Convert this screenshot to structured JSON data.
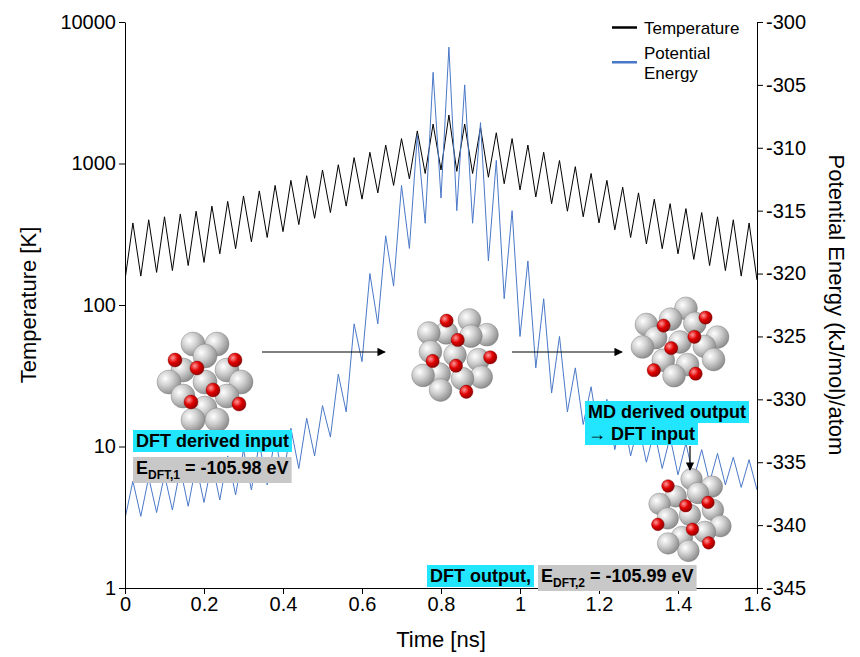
{
  "chart_data": {
    "type": "line",
    "x_label": "Time [ns]",
    "y_label": "Temperature [K]",
    "y2_label": "Potential Energy (kJ/mol)/atom",
    "log": "y",
    "grid": false,
    "legend": "upper right",
    "xlim": [
      0,
      1.6
    ],
    "xticks": [
      0,
      0.2,
      0.4,
      0.6,
      0.8,
      1,
      1.2,
      1.4,
      1.6
    ],
    "ylim": [
      1,
      10000
    ],
    "yticks": [
      1,
      10,
      100,
      1000,
      10000
    ],
    "y2lim": [
      -345,
      -300
    ],
    "y2ticks": [
      -345,
      -340,
      -335,
      -330,
      -325,
      -320,
      -315,
      -310,
      -305,
      -300
    ],
    "x": [
      0,
      0.02,
      0.04,
      0.06,
      0.08,
      0.1,
      0.12,
      0.14,
      0.16,
      0.18,
      0.2,
      0.22,
      0.24,
      0.26,
      0.28,
      0.3,
      0.32,
      0.34,
      0.36,
      0.38,
      0.4,
      0.42,
      0.44,
      0.46,
      0.48,
      0.5,
      0.52,
      0.54,
      0.56,
      0.58,
      0.6,
      0.62,
      0.64,
      0.66,
      0.68,
      0.7,
      0.72,
      0.74,
      0.76,
      0.78,
      0.8,
      0.82,
      0.84,
      0.86,
      0.88,
      0.9,
      0.92,
      0.94,
      0.96,
      0.98,
      1,
      1.02,
      1.04,
      1.06,
      1.08,
      1.1,
      1.12,
      1.14,
      1.16,
      1.18,
      1.2,
      1.22,
      1.24,
      1.26,
      1.28,
      1.3,
      1.32,
      1.34,
      1.36,
      1.38,
      1.4,
      1.42,
      1.44,
      1.46,
      1.48,
      1.5,
      1.52,
      1.54,
      1.56,
      1.58,
      1.6
    ],
    "series": [
      {
        "name": "Temperature",
        "color": "#000000",
        "axis": "y",
        "values": [
          150,
          380,
          160,
          400,
          170,
          420,
          175,
          440,
          190,
          460,
          200,
          500,
          230,
          540,
          250,
          590,
          280,
          640,
          300,
          700,
          330,
          760,
          370,
          820,
          410,
          900,
          450,
          980,
          500,
          1100,
          560,
          1200,
          620,
          1350,
          700,
          1500,
          780,
          1700,
          850,
          1900,
          900,
          2200,
          880,
          1900,
          850,
          1800,
          800,
          1650,
          720,
          1500,
          650,
          1350,
          580,
          1200,
          520,
          1050,
          460,
          950,
          420,
          850,
          380,
          760,
          340,
          680,
          300,
          620,
          270,
          560,
          250,
          520,
          230,
          480,
          210,
          450,
          190,
          420,
          175,
          400,
          160,
          380,
          150
        ]
      },
      {
        "name": "Potential Energy",
        "color": "#4a78c8",
        "axis": "y2",
        "values": [
          -339.5,
          -336.5,
          -339.3,
          -336.2,
          -339,
          -336,
          -338.8,
          -335.5,
          -338.5,
          -335.2,
          -338.2,
          -335,
          -338,
          -334.5,
          -337.6,
          -334,
          -337.2,
          -333.5,
          -336.8,
          -333,
          -336.3,
          -332.3,
          -335.5,
          -331.5,
          -334.5,
          -330.5,
          -333,
          -328,
          -331,
          -324,
          -327,
          -320,
          -324,
          -317,
          -321,
          -313,
          -318,
          -309,
          -316,
          -304,
          -314,
          -302,
          -315,
          -305,
          -316,
          -308,
          -319,
          -311,
          -322,
          -315,
          -325,
          -319,
          -327.5,
          -322,
          -329.5,
          -325,
          -331,
          -327.5,
          -332,
          -329,
          -333,
          -330,
          -334,
          -331,
          -334.5,
          -332,
          -335,
          -332.5,
          -335.5,
          -333,
          -336,
          -333.5,
          -336.3,
          -334,
          -336.6,
          -334.3,
          -336.8,
          -334.6,
          -337,
          -334.8,
          -337.2
        ]
      }
    ],
    "annotations": [
      {
        "text": "DFT derived input"
      },
      {
        "text": "E",
        "sub": "DFT,1",
        "tail": " = -105.98 eV"
      },
      {
        "text": "MD derived output"
      },
      {
        "text": "→ DFT input"
      },
      {
        "text": "DFT output,"
      },
      {
        "text": "E",
        "sub": "DFT,2",
        "tail": " = -105.99 eV"
      }
    ]
  }
}
